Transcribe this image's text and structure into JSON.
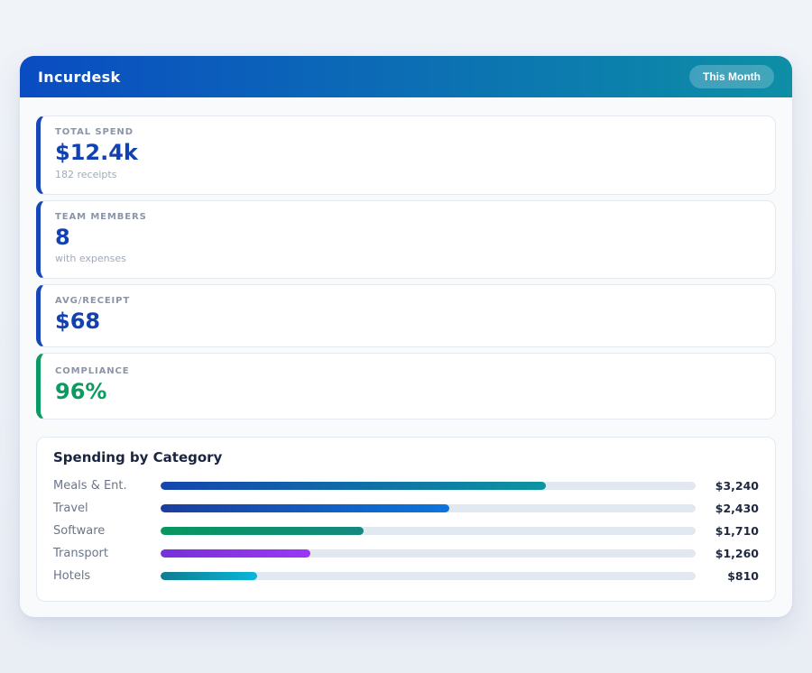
{
  "header": {
    "app_title": "Incurdesk",
    "period_badge": "This Month",
    "gradient_from": "#0a4cc2",
    "gradient_to": "#0d8fa6"
  },
  "stats": [
    {
      "label": "TOTAL SPEND",
      "value": "$12.4k",
      "sub": "182 receipts",
      "accent": "#1646b8",
      "value_color": "#1242b2"
    },
    {
      "label": "TEAM MEMBERS",
      "value": "8",
      "sub": "with expenses",
      "accent": "#1646b8",
      "value_color": "#1242b2"
    },
    {
      "label": "AVG/RECEIPT",
      "value": "$68",
      "sub": "",
      "accent": "#1646b8",
      "value_color": "#1242b2"
    },
    {
      "label": "COMPLIANCE",
      "value": "96%",
      "sub": "",
      "accent": "#0a9b62",
      "value_color": "#0a9b62"
    }
  ],
  "spending": {
    "title": "Spending by Category",
    "track_color": "#e2e8f0",
    "rows": [
      {
        "label": "Meals & Ent.",
        "value": "$3,240",
        "pct": 72,
        "from": "#1545ae",
        "to": "#0c95a0"
      },
      {
        "label": "Travel",
        "value": "$2,430",
        "pct": 54,
        "from": "#1b3e9e",
        "to": "#0b76dd"
      },
      {
        "label": "Software",
        "value": "$1,710",
        "pct": 38,
        "from": "#07975f",
        "to": "#14897f"
      },
      {
        "label": "Transport",
        "value": "$1,260",
        "pct": 28,
        "from": "#7632d8",
        "to": "#9d36f5"
      },
      {
        "label": "Hotels",
        "value": "$810",
        "pct": 18,
        "from": "#0e7c92",
        "to": "#0ab6d8"
      }
    ]
  },
  "chart_data": {
    "type": "bar",
    "orientation": "horizontal",
    "title": "Spending by Category",
    "categories": [
      "Meals & Ent.",
      "Travel",
      "Software",
      "Transport",
      "Hotels"
    ],
    "values": [
      3240,
      2430,
      1710,
      1260,
      810
    ],
    "value_labels": [
      "$3,240",
      "$2,430",
      "$1,710",
      "$1,260",
      "$810"
    ],
    "fill_percent": [
      72,
      54,
      38,
      28,
      18
    ],
    "grid": false,
    "legend": false
  }
}
